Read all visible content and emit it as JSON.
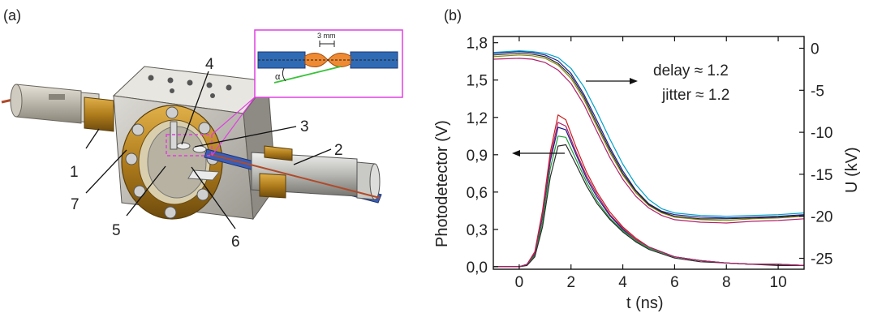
{
  "panels": {
    "a": "(a)",
    "b": "(b)"
  },
  "panel_a": {
    "callouts": [
      "1",
      "2",
      "3",
      "4",
      "5",
      "6",
      "7"
    ],
    "inset_label": "3 mm",
    "inset_angle": "α",
    "colors": {
      "inset_border": "#e040e0",
      "electrode": "#2f6bb5",
      "spark": "#f08a32",
      "line": "#3ac23a"
    }
  },
  "chart_data": {
    "type": "line",
    "xlabel": "t (ns)",
    "ylabel": "Photodetector (V)",
    "y2label": "U (kV)",
    "xlim": [
      -1,
      11
    ],
    "ylim": [
      -0.02,
      1.85
    ],
    "y2lim": [
      -26.3,
      1.4
    ],
    "x_ticks": [
      "0",
      "2",
      "4",
      "6",
      "8",
      "10"
    ],
    "y_ticks": [
      "0,0",
      "0,3",
      "0,6",
      "0,9",
      "1,2",
      "1,5",
      "1,8"
    ],
    "y2_ticks": [
      "0",
      "-5",
      "-10",
      "-15",
      "-20",
      "-25"
    ],
    "annotations": [
      "delay ≈ 1.2",
      "jitter ≈ 1.2"
    ],
    "series": [
      {
        "axis": "right",
        "color": "#1a1a8c",
        "x": [
          -1,
          0,
          0.5,
          1,
          1.5,
          2,
          2.5,
          3,
          3.5,
          4,
          4.5,
          5,
          5.5,
          6,
          7,
          8,
          9,
          10,
          11
        ],
        "y": [
          -0.6,
          -0.4,
          -0.5,
          -0.8,
          -1.5,
          -3,
          -5.5,
          -8.6,
          -11.8,
          -14.6,
          -16.9,
          -18.5,
          -19.4,
          -19.8,
          -20.1,
          -20.2,
          -20.1,
          -20.0,
          -19.8
        ]
      },
      {
        "axis": "right",
        "color": "#00a0c8",
        "x": [
          -1,
          0,
          0.5,
          1,
          1.5,
          2,
          2.5,
          3,
          3.5,
          4,
          4.5,
          5,
          5.5,
          6,
          7,
          8,
          9,
          10,
          11
        ],
        "y": [
          -0.5,
          -0.3,
          -0.4,
          -0.6,
          -1.1,
          -2.4,
          -4.6,
          -7.6,
          -10.8,
          -13.8,
          -16.2,
          -18.0,
          -19.1,
          -19.6,
          -19.9,
          -20.0,
          -19.9,
          -19.8,
          -19.6
        ]
      },
      {
        "axis": "right",
        "color": "#b0206a",
        "x": [
          -1,
          0,
          0.5,
          1,
          1.5,
          2,
          2.5,
          3,
          3.5,
          4,
          4.5,
          5,
          5.5,
          6,
          7,
          8,
          9,
          10,
          11
        ],
        "y": [
          -1.3,
          -1.2,
          -1.3,
          -1.7,
          -2.6,
          -4.2,
          -6.7,
          -9.9,
          -13.0,
          -15.6,
          -17.6,
          -19.0,
          -19.9,
          -20.4,
          -20.7,
          -20.8,
          -20.6,
          -20.5,
          -20.3
        ]
      },
      {
        "axis": "right",
        "color": "#8a8a10",
        "x": [
          -1,
          0,
          0.5,
          1,
          1.5,
          2,
          2.5,
          3,
          3.5,
          4,
          4.5,
          5,
          5.5,
          6,
          7,
          8,
          9,
          10,
          11
        ],
        "y": [
          -1.0,
          -0.8,
          -0.9,
          -1.2,
          -2.0,
          -3.6,
          -6.1,
          -9.3,
          -12.4,
          -15.1,
          -17.2,
          -18.7,
          -19.6,
          -20.1,
          -20.4,
          -20.5,
          -20.3,
          -20.2,
          -20.0
        ]
      },
      {
        "axis": "right",
        "color": "#2a2a2a",
        "x": [
          -1,
          0,
          0.5,
          1,
          1.5,
          2,
          2.5,
          3,
          3.5,
          4,
          4.5,
          5,
          5.5,
          6,
          7,
          8,
          9,
          10,
          11
        ],
        "y": [
          -0.8,
          -0.6,
          -0.7,
          -1.0,
          -1.8,
          -3.3,
          -5.8,
          -9.0,
          -12.1,
          -14.9,
          -17.0,
          -18.6,
          -19.5,
          -20.0,
          -20.3,
          -20.3,
          -20.2,
          -20.1,
          -19.9
        ]
      },
      {
        "axis": "left",
        "color": "#c81e1e",
        "x": [
          -1,
          0,
          0.3,
          0.6,
          0.9,
          1.2,
          1.5,
          1.8,
          2.2,
          2.6,
          3,
          3.5,
          4,
          4.5,
          5,
          6,
          7,
          8,
          9,
          10,
          11
        ],
        "y": [
          0.0,
          0.0,
          0.02,
          0.12,
          0.45,
          0.92,
          1.22,
          1.18,
          0.96,
          0.76,
          0.6,
          0.44,
          0.32,
          0.23,
          0.16,
          0.08,
          0.05,
          0.03,
          0.02,
          0.02,
          0.01
        ]
      },
      {
        "axis": "left",
        "color": "#1a1a8c",
        "x": [
          -1,
          0,
          0.3,
          0.6,
          0.9,
          1.2,
          1.5,
          1.8,
          2.2,
          2.6,
          3,
          3.5,
          4,
          4.5,
          5,
          6,
          7,
          8,
          9,
          10,
          11
        ],
        "y": [
          0.0,
          0.0,
          0.02,
          0.1,
          0.4,
          0.85,
          1.12,
          1.1,
          0.9,
          0.71,
          0.56,
          0.41,
          0.3,
          0.21,
          0.15,
          0.08,
          0.05,
          0.03,
          0.02,
          0.02,
          0.01
        ]
      },
      {
        "axis": "left",
        "color": "#1f9e3a",
        "x": [
          -1,
          0,
          0.3,
          0.6,
          0.9,
          1.2,
          1.5,
          1.8,
          2.2,
          2.6,
          3,
          3.5,
          4,
          4.5,
          5,
          6,
          7,
          8,
          9,
          10,
          11
        ],
        "y": [
          0.0,
          0.0,
          0.02,
          0.09,
          0.36,
          0.79,
          1.05,
          1.04,
          0.86,
          0.68,
          0.53,
          0.39,
          0.29,
          0.21,
          0.15,
          0.08,
          0.05,
          0.03,
          0.02,
          0.02,
          0.01
        ]
      },
      {
        "axis": "left",
        "color": "#2a2a2a",
        "x": [
          -1,
          0,
          0.3,
          0.6,
          0.9,
          1.2,
          1.5,
          1.8,
          2.2,
          2.6,
          3,
          3.5,
          4,
          4.5,
          5,
          6,
          7,
          8,
          9,
          10,
          11
        ],
        "y": [
          0.0,
          0.0,
          0.01,
          0.08,
          0.32,
          0.72,
          0.97,
          0.98,
          0.82,
          0.65,
          0.51,
          0.38,
          0.28,
          0.2,
          0.14,
          0.07,
          0.04,
          0.03,
          0.02,
          0.01,
          0.01
        ]
      },
      {
        "axis": "left",
        "color": "#b0206a",
        "x": [
          -1,
          0,
          0.3,
          0.6,
          0.9,
          1.2,
          1.5,
          1.8,
          2.2,
          2.6,
          3,
          3.5,
          4,
          4.5,
          5,
          6,
          7,
          8,
          9,
          10,
          11
        ],
        "y": [
          0.0,
          0.0,
          0.02,
          0.11,
          0.42,
          0.88,
          1.16,
          1.13,
          0.92,
          0.73,
          0.58,
          0.42,
          0.31,
          0.22,
          0.16,
          0.08,
          0.05,
          0.03,
          0.02,
          0.02,
          0.01
        ]
      }
    ]
  }
}
